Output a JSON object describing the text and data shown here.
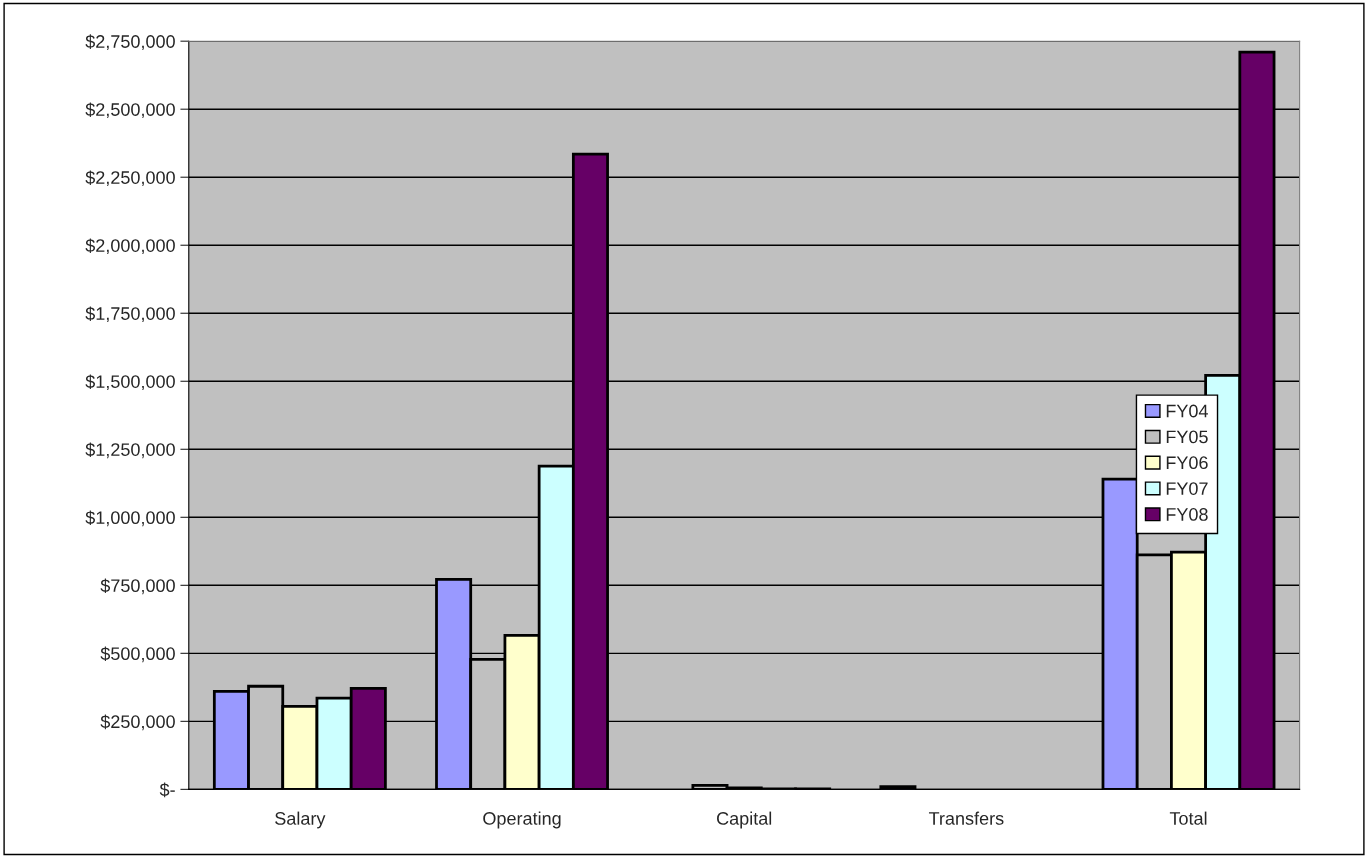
{
  "chart_data": {
    "type": "bar",
    "categories": [
      "Salary",
      "Operating",
      "Capital",
      "Transfers",
      "Total"
    ],
    "series": [
      {
        "name": "FY04",
        "color": "#9999ff",
        "values": [
          360000,
          772000,
          0,
          10000,
          1140000
        ]
      },
      {
        "name": "FY05",
        "color": "#c0c0c0",
        "values": [
          379000,
          478000,
          15000,
          0,
          862000
        ]
      },
      {
        "name": "FY06",
        "color": "#ffffcc",
        "values": [
          305000,
          566000,
          5000,
          0,
          872000
        ]
      },
      {
        "name": "FY07",
        "color": "#ccffff",
        "values": [
          335000,
          1188000,
          2000,
          0,
          1522000
        ]
      },
      {
        "name": "FY08",
        "color": "#660066",
        "values": [
          371000,
          2335000,
          2000,
          0,
          2710000
        ]
      }
    ],
    "ylim": [
      0,
      2750000
    ],
    "yticks": [
      {
        "value": 0,
        "label": "$-"
      },
      {
        "value": 250000,
        "label": "$250,000"
      },
      {
        "value": 500000,
        "label": "$500,000"
      },
      {
        "value": 750000,
        "label": "$750,000"
      },
      {
        "value": 1000000,
        "label": "$1,000,000"
      },
      {
        "value": 1250000,
        "label": "$1,250,000"
      },
      {
        "value": 1500000,
        "label": "$1,500,000"
      },
      {
        "value": 1750000,
        "label": "$1,750,000"
      },
      {
        "value": 2000000,
        "label": "$2,000,000"
      },
      {
        "value": 2250000,
        "label": "$2,250,000"
      },
      {
        "value": 2500000,
        "label": "$2,500,000"
      },
      {
        "value": 2750000,
        "label": "$2,750,000"
      }
    ],
    "grid": "y",
    "legend": "right"
  }
}
